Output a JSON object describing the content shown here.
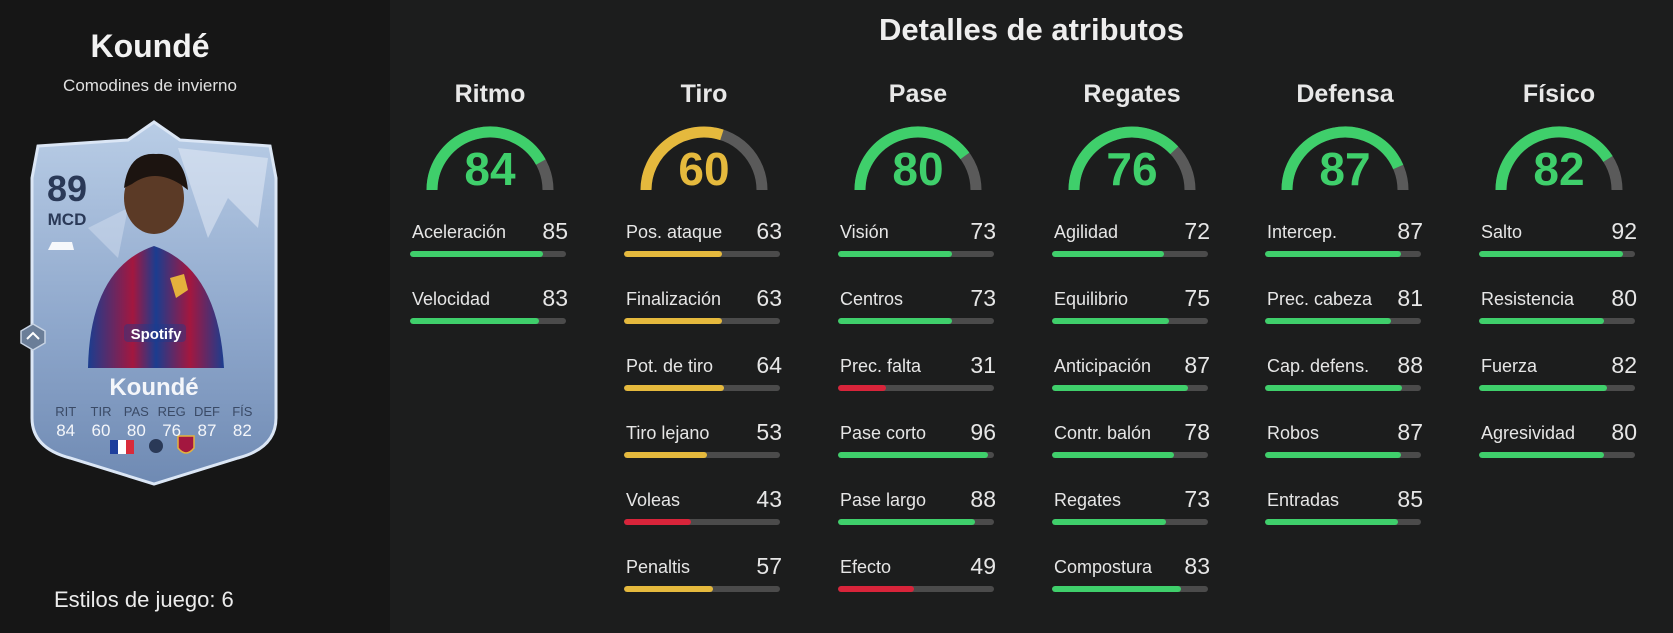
{
  "player": {
    "name": "Koundé",
    "card_type": "Comodines de invierno",
    "rating": "89",
    "position": "MCD",
    "card_stats": [
      {
        "label": "RIT",
        "value": "84"
      },
      {
        "label": "TIR",
        "value": "60"
      },
      {
        "label": "PAS",
        "value": "80"
      },
      {
        "label": "REG",
        "value": "76"
      },
      {
        "label": "DEF",
        "value": "87"
      },
      {
        "label": "FÍS",
        "value": "82"
      }
    ],
    "playstyles": "Estilos de juego: 6"
  },
  "details_title": "Detalles de atributos",
  "colors": {
    "high": "#3fcf6b",
    "mid": "#e5b93d",
    "low": "#d8243a",
    "track": "#4b4b4b"
  },
  "categories": [
    {
      "name": "Ritmo",
      "value": 84,
      "attributes": [
        {
          "name": "Aceleración",
          "value": 85
        },
        {
          "name": "Velocidad",
          "value": 83
        }
      ]
    },
    {
      "name": "Tiro",
      "value": 60,
      "attributes": [
        {
          "name": "Pos. ataque",
          "value": 63
        },
        {
          "name": "Finalización",
          "value": 63
        },
        {
          "name": "Pot. de tiro",
          "value": 64
        },
        {
          "name": "Tiro lejano",
          "value": 53
        },
        {
          "name": "Voleas",
          "value": 43
        },
        {
          "name": "Penaltis",
          "value": 57
        }
      ]
    },
    {
      "name": "Pase",
      "value": 80,
      "attributes": [
        {
          "name": "Visión",
          "value": 73
        },
        {
          "name": "Centros",
          "value": 73
        },
        {
          "name": "Prec. falta",
          "value": 31
        },
        {
          "name": "Pase corto",
          "value": 96
        },
        {
          "name": "Pase largo",
          "value": 88
        },
        {
          "name": "Efecto",
          "value": 49
        }
      ]
    },
    {
      "name": "Regates",
      "value": 76,
      "attributes": [
        {
          "name": "Agilidad",
          "value": 72
        },
        {
          "name": "Equilibrio",
          "value": 75
        },
        {
          "name": "Anticipación",
          "value": 87
        },
        {
          "name": "Contr. balón",
          "value": 78
        },
        {
          "name": "Regates",
          "value": 73
        },
        {
          "name": "Compostura",
          "value": 83
        }
      ]
    },
    {
      "name": "Defensa",
      "value": 87,
      "attributes": [
        {
          "name": "Intercep.",
          "value": 87
        },
        {
          "name": "Prec. cabeza",
          "value": 81
        },
        {
          "name": "Cap. defens.",
          "value": 88
        },
        {
          "name": "Robos",
          "value": 87
        },
        {
          "name": "Entradas",
          "value": 85
        }
      ]
    },
    {
      "name": "Físico",
      "value": 82,
      "attributes": [
        {
          "name": "Salto",
          "value": 92
        },
        {
          "name": "Resistencia",
          "value": 80
        },
        {
          "name": "Fuerza",
          "value": 82
        },
        {
          "name": "Agresividad",
          "value": 80
        }
      ]
    }
  ]
}
